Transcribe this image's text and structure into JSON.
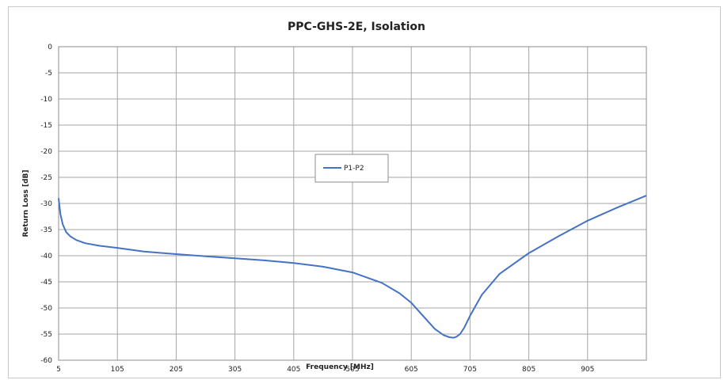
{
  "chart_data": {
    "type": "line",
    "title": "PPC-GHS-2E, Isolation",
    "xlabel": "Frequency [MHz]",
    "ylabel": "Return Loss [dB]",
    "xlim": [
      5,
      1005
    ],
    "ylim": [
      -60,
      0
    ],
    "x_ticks": [
      5,
      105,
      205,
      305,
      405,
      505,
      605,
      705,
      805,
      905
    ],
    "y_ticks": [
      0,
      -5,
      -10,
      -15,
      -20,
      -25,
      -30,
      -35,
      -40,
      -45,
      -50,
      -55,
      -60
    ],
    "grid": true,
    "legend_position": "center",
    "series": [
      {
        "name": "P1-P2",
        "color": "#4472c4",
        "x": [
          5,
          8,
          12,
          18,
          25,
          35,
          50,
          75,
          105,
          150,
          205,
          255,
          305,
          355,
          405,
          455,
          505,
          555,
          585,
          605,
          625,
          645,
          660,
          670,
          677,
          682,
          688,
          695,
          705,
          725,
          755,
          805,
          855,
          905,
          955,
          1005
        ],
        "y": [
          -29,
          -32,
          -34,
          -35.5,
          -36.3,
          -37,
          -37.6,
          -38.1,
          -38.5,
          -39.2,
          -39.7,
          -40.1,
          -40.5,
          -40.9,
          -41.4,
          -42.1,
          -43.2,
          -45.2,
          -47.2,
          -49,
          -51.5,
          -54,
          -55.2,
          -55.6,
          -55.7,
          -55.5,
          -55,
          -53.8,
          -51.5,
          -47.5,
          -43.5,
          -39.5,
          -36.3,
          -33.3,
          -30.8,
          -28.5
        ]
      }
    ]
  }
}
